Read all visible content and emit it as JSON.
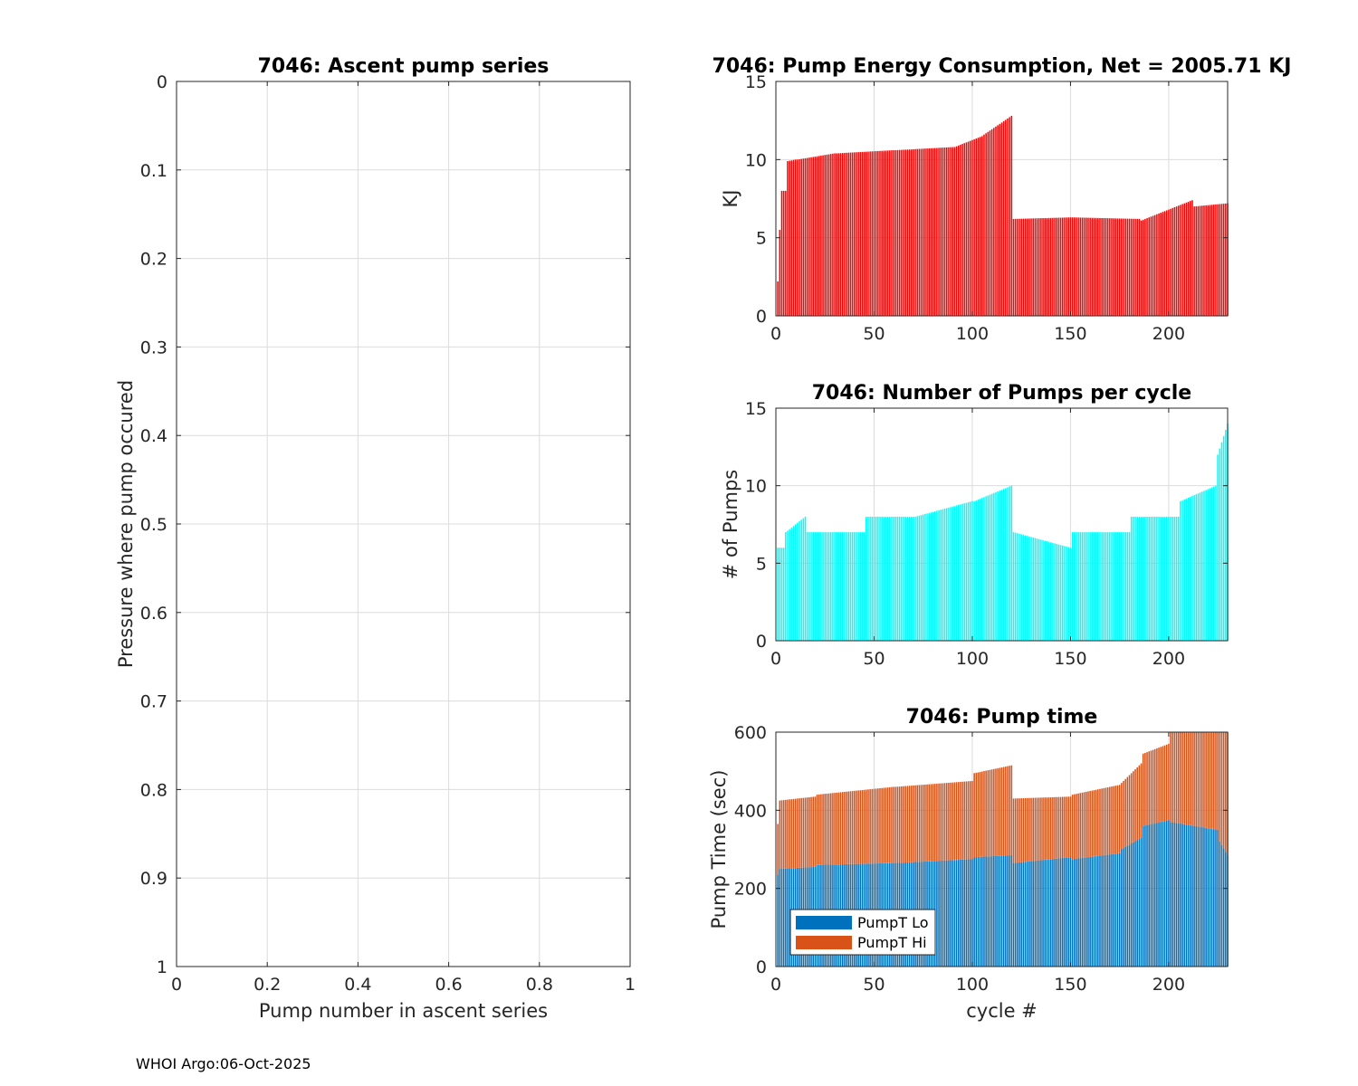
{
  "footer": "WHOI Argo:06-Oct-2025",
  "colors": {
    "energy": "#ff0000",
    "pumps": "#00ffff",
    "pumpt_lo": "#0072bd",
    "pumpt_hi": "#d95319",
    "grid": "#dcdcdc",
    "axis": "#262626"
  },
  "chart_data": [
    {
      "id": "ascent",
      "type": "scatter",
      "title": "7046: Ascent pump series",
      "xlabel": "Pump number in ascent series",
      "ylabel": "Pressure where pump occured",
      "xlim": [
        0,
        1
      ],
      "ylim": [
        0,
        1
      ],
      "y_reversed": true,
      "xticks": [
        0,
        0.2,
        0.4,
        0.6,
        0.8,
        1
      ],
      "xtick_labels": [
        "0",
        "0.2",
        "0.4",
        "0.6",
        "0.8",
        "1"
      ],
      "yticks": [
        0,
        0.1,
        0.2,
        0.3,
        0.4,
        0.5,
        0.6,
        0.7,
        0.8,
        0.9,
        1
      ],
      "ytick_labels": [
        "0",
        "0.1",
        "0.2",
        "0.3",
        "0.4",
        "0.5",
        "0.6",
        "0.7",
        "0.8",
        "0.9",
        "1"
      ],
      "grid": true,
      "points": []
    },
    {
      "id": "energy",
      "type": "bar",
      "title": "7046: Pump Energy Consumption,  Net = 2005.71 KJ",
      "xlabel": "",
      "ylabel": "KJ",
      "xlim": [
        0,
        230
      ],
      "ylim": [
        0,
        15
      ],
      "xticks": [
        0,
        50,
        100,
        150,
        200
      ],
      "xtick_labels": [
        "0",
        "50",
        "100",
        "150",
        "200"
      ],
      "yticks": [
        0,
        5,
        10,
        15
      ],
      "ytick_labels": [
        "0",
        "5",
        "10",
        "15"
      ],
      "grid": true,
      "series": [
        {
          "name": "Energy",
          "segments": [
            {
              "from": 1,
              "to": 1,
              "v1": 2.2,
              "v2": 2.2
            },
            {
              "from": 2,
              "to": 2,
              "v1": 5.5,
              "v2": 5.5
            },
            {
              "from": 3,
              "to": 5,
              "v1": 8.0,
              "v2": 8.0
            },
            {
              "from": 6,
              "to": 10,
              "v1": 9.9,
              "v2": 10.0
            },
            {
              "from": 11,
              "to": 30,
              "v1": 10.0,
              "v2": 10.4
            },
            {
              "from": 31,
              "to": 60,
              "v1": 10.4,
              "v2": 10.6
            },
            {
              "from": 61,
              "to": 90,
              "v1": 10.6,
              "v2": 10.8
            },
            {
              "from": 91,
              "to": 105,
              "v1": 10.8,
              "v2": 11.5
            },
            {
              "from": 106,
              "to": 120,
              "v1": 11.6,
              "v2": 12.8
            },
            {
              "from": 121,
              "to": 150,
              "v1": 6.2,
              "v2": 6.3
            },
            {
              "from": 151,
              "to": 185,
              "v1": 6.3,
              "v2": 6.2
            },
            {
              "from": 186,
              "to": 212,
              "v1": 6.1,
              "v2": 7.4
            },
            {
              "from": 213,
              "to": 230,
              "v1": 7.0,
              "v2": 7.2
            }
          ]
        }
      ]
    },
    {
      "id": "pumps",
      "type": "bar",
      "title": "7046: Number of Pumps per cycle",
      "xlabel": "",
      "ylabel": "# of Pumps",
      "xlim": [
        0,
        230
      ],
      "ylim": [
        0,
        15
      ],
      "xticks": [
        0,
        50,
        100,
        150,
        200
      ],
      "xtick_labels": [
        "0",
        "50",
        "100",
        "150",
        "200"
      ],
      "yticks": [
        0,
        5,
        10,
        15
      ],
      "ytick_labels": [
        "0",
        "5",
        "10",
        "15"
      ],
      "grid": true,
      "series": [
        {
          "name": "Pumps",
          "segments": [
            {
              "from": 1,
              "to": 4,
              "v1": 6,
              "v2": 6
            },
            {
              "from": 5,
              "to": 15,
              "v1": 7,
              "v2": 8
            },
            {
              "from": 16,
              "to": 45,
              "v1": 7,
              "v2": 7
            },
            {
              "from": 46,
              "to": 70,
              "v1": 8,
              "v2": 8
            },
            {
              "from": 71,
              "to": 100,
              "v1": 8,
              "v2": 9
            },
            {
              "from": 101,
              "to": 120,
              "v1": 9,
              "v2": 10
            },
            {
              "from": 121,
              "to": 150,
              "v1": 7,
              "v2": 6
            },
            {
              "from": 151,
              "to": 180,
              "v1": 7,
              "v2": 7
            },
            {
              "from": 181,
              "to": 205,
              "v1": 8,
              "v2": 8
            },
            {
              "from": 206,
              "to": 224,
              "v1": 9,
              "v2": 10
            },
            {
              "from": 225,
              "to": 230,
              "v1": 12,
              "v2": 14
            }
          ]
        }
      ]
    },
    {
      "id": "pumptime",
      "type": "bar",
      "stacked": true,
      "title": "7046: Pump time",
      "xlabel": "cycle #",
      "ylabel": "Pump Time (sec)",
      "xlim": [
        0,
        230
      ],
      "ylim": [
        0,
        600
      ],
      "xticks": [
        0,
        50,
        100,
        150,
        200
      ],
      "xtick_labels": [
        "0",
        "50",
        "100",
        "150",
        "200"
      ],
      "yticks": [
        0,
        200,
        400,
        600
      ],
      "ytick_labels": [
        "0",
        "200",
        "400",
        "600"
      ],
      "grid": true,
      "legend": {
        "placement": "bottom-left",
        "entries": [
          "PumpT Lo",
          "PumpT Hi"
        ]
      },
      "series": [
        {
          "name": "PumpT Lo",
          "segments": [
            {
              "from": 1,
              "to": 1,
              "v1": 235,
              "v2": 235
            },
            {
              "from": 2,
              "to": 20,
              "v1": 250,
              "v2": 255
            },
            {
              "from": 21,
              "to": 60,
              "v1": 260,
              "v2": 265
            },
            {
              "from": 61,
              "to": 100,
              "v1": 265,
              "v2": 275
            },
            {
              "from": 101,
              "to": 120,
              "v1": 280,
              "v2": 285
            },
            {
              "from": 121,
              "to": 150,
              "v1": 265,
              "v2": 280
            },
            {
              "from": 151,
              "to": 175,
              "v1": 275,
              "v2": 290
            },
            {
              "from": 176,
              "to": 186,
              "v1": 300,
              "v2": 330
            },
            {
              "from": 187,
              "to": 200,
              "v1": 360,
              "v2": 375
            },
            {
              "from": 201,
              "to": 225,
              "v1": 370,
              "v2": 350
            },
            {
              "from": 226,
              "to": 230,
              "v1": 320,
              "v2": 285
            }
          ]
        },
        {
          "name": "PumpT Hi",
          "segments": [
            {
              "from": 1,
              "to": 1,
              "v1": 130,
              "v2": 130
            },
            {
              "from": 2,
              "to": 20,
              "v1": 175,
              "v2": 180
            },
            {
              "from": 21,
              "to": 60,
              "v1": 180,
              "v2": 195
            },
            {
              "from": 61,
              "to": 100,
              "v1": 195,
              "v2": 200
            },
            {
              "from": 101,
              "to": 120,
              "v1": 215,
              "v2": 230
            },
            {
              "from": 121,
              "to": 150,
              "v1": 165,
              "v2": 155
            },
            {
              "from": 151,
              "to": 175,
              "v1": 165,
              "v2": 175
            },
            {
              "from": 176,
              "to": 186,
              "v1": 170,
              "v2": 190
            },
            {
              "from": 187,
              "to": 200,
              "v1": 185,
              "v2": 195
            },
            {
              "from": 201,
              "to": 225,
              "v1": 230,
              "v2": 260
            },
            {
              "from": 226,
              "to": 230,
              "v1": 280,
              "v2": 320
            }
          ]
        }
      ]
    }
  ]
}
